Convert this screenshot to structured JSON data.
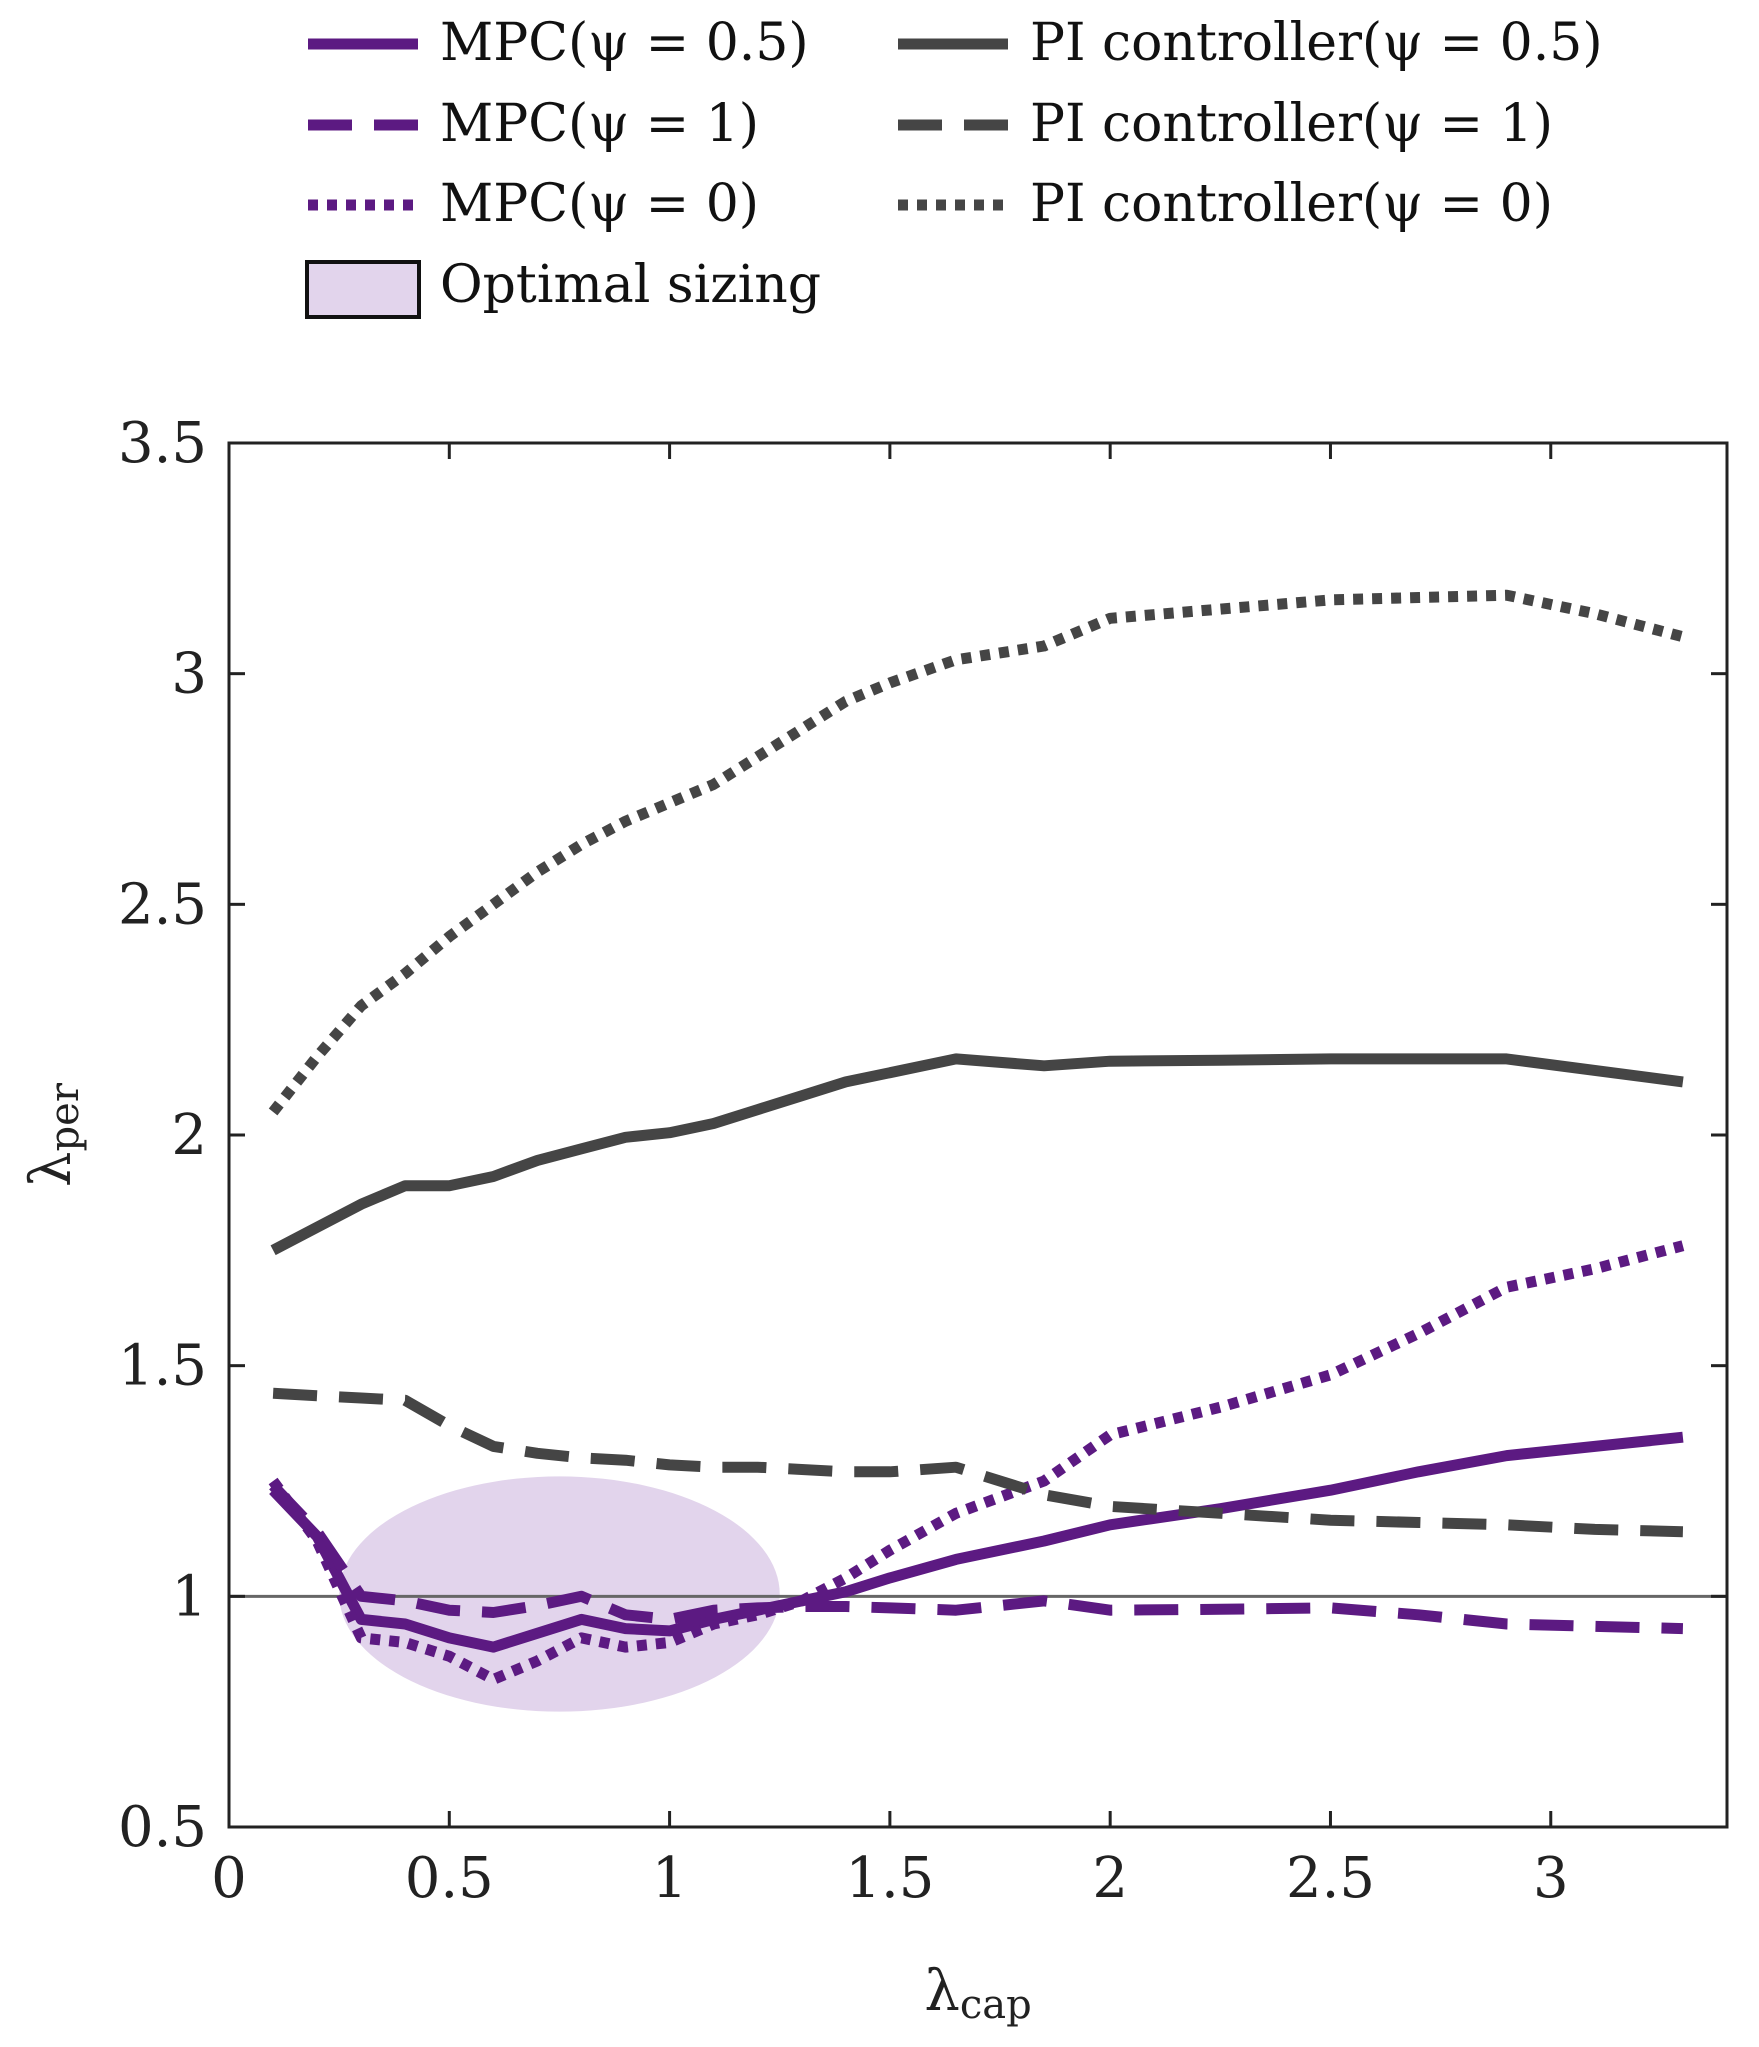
{
  "chart_data": {
    "type": "line",
    "title": "",
    "xlabel": "λcap",
    "xlabel_symbol": "λ",
    "xlabel_sub": "cap",
    "ylabel": "λper",
    "ylabel_symbol": "λ",
    "ylabel_sub": "per",
    "xlim": [
      0,
      3.4
    ],
    "ylim": [
      0.5,
      3.5
    ],
    "xticks": [
      0,
      0.5,
      1,
      1.5,
      2,
      2.5,
      3
    ],
    "xtick_labels": [
      "0",
      "0.5",
      "1",
      "1.5",
      "2",
      "2.5",
      "3"
    ],
    "yticks": [
      0.5,
      1,
      1.5,
      2,
      2.5,
      3,
      3.5
    ],
    "ytick_labels": [
      "0.5",
      "1",
      "1.5",
      "2",
      "2.5",
      "3",
      "3.5"
    ],
    "grid": false,
    "legend_position": "top",
    "reference_line": {
      "y": 1,
      "color": "#666666"
    },
    "optimal_region": {
      "label": "Optimal sizing",
      "center_x": 0.75,
      "center_y": 1.005,
      "radius_x": 0.5,
      "radius_y": 0.255,
      "color": "#e2d4ec"
    },
    "series": [
      {
        "name": "MPC(ψ = 0.5)",
        "color": "#5c1a82",
        "style": "solid",
        "x": [
          0.1,
          0.2,
          0.3,
          0.4,
          0.5,
          0.6,
          0.7,
          0.8,
          0.9,
          1.0,
          1.1,
          1.2,
          1.3,
          1.4,
          1.5,
          1.65,
          1.85,
          2.0,
          2.25,
          2.5,
          2.7,
          2.9,
          3.1,
          3.3
        ],
        "y": [
          1.23,
          1.13,
          0.95,
          0.94,
          0.91,
          0.89,
          0.92,
          0.95,
          0.93,
          0.925,
          0.95,
          0.97,
          0.99,
          1.01,
          1.04,
          1.08,
          1.12,
          1.155,
          1.19,
          1.23,
          1.27,
          1.305,
          1.325,
          1.345
        ]
      },
      {
        "name": "MPC(ψ = 1)",
        "color": "#5c1a82",
        "style": "dashed",
        "x": [
          0.1,
          0.2,
          0.3,
          0.4,
          0.5,
          0.6,
          0.7,
          0.8,
          0.9,
          1.0,
          1.1,
          1.2,
          1.3,
          1.4,
          1.5,
          1.65,
          1.85,
          2.0,
          2.25,
          2.5,
          2.7,
          2.9,
          3.1,
          3.3
        ],
        "y": [
          1.24,
          1.14,
          1.0,
          0.99,
          0.97,
          0.965,
          0.98,
          1.0,
          0.96,
          0.95,
          0.97,
          0.975,
          0.978,
          0.978,
          0.975,
          0.97,
          0.99,
          0.97,
          0.972,
          0.975,
          0.96,
          0.94,
          0.935,
          0.93
        ]
      },
      {
        "name": "MPC(ψ = 0)",
        "color": "#5c1a82",
        "style": "dotted",
        "x": [
          0.1,
          0.2,
          0.3,
          0.4,
          0.5,
          0.6,
          0.7,
          0.8,
          0.9,
          1.0,
          1.1,
          1.2,
          1.3,
          1.4,
          1.5,
          1.65,
          1.85,
          2.0,
          2.25,
          2.5,
          2.7,
          2.9,
          3.1,
          3.3
        ],
        "y": [
          1.25,
          1.12,
          0.91,
          0.9,
          0.87,
          0.82,
          0.86,
          0.91,
          0.89,
          0.9,
          0.94,
          0.96,
          0.99,
          1.04,
          1.1,
          1.18,
          1.25,
          1.35,
          1.41,
          1.48,
          1.57,
          1.67,
          1.71,
          1.76
        ]
      },
      {
        "name": "PI controller(ψ = 0.5)",
        "color": "#454545",
        "style": "solid",
        "x": [
          0.1,
          0.2,
          0.3,
          0.4,
          0.5,
          0.6,
          0.7,
          0.8,
          0.9,
          1.0,
          1.1,
          1.2,
          1.3,
          1.4,
          1.5,
          1.65,
          1.85,
          2.0,
          2.25,
          2.5,
          2.7,
          2.9,
          3.1,
          3.3
        ],
        "y": [
          1.75,
          1.8,
          1.85,
          1.89,
          1.89,
          1.91,
          1.945,
          1.97,
          1.995,
          2.005,
          2.025,
          2.055,
          2.085,
          2.115,
          2.135,
          2.165,
          2.15,
          2.16,
          2.162,
          2.165,
          2.165,
          2.165,
          2.14,
          2.115
        ]
      },
      {
        "name": "PI controller(ψ = 1)",
        "color": "#454545",
        "style": "dashed",
        "x": [
          0.1,
          0.2,
          0.3,
          0.4,
          0.5,
          0.6,
          0.7,
          0.8,
          0.9,
          1.0,
          1.1,
          1.2,
          1.3,
          1.4,
          1.5,
          1.65,
          1.85,
          2.0,
          2.25,
          2.5,
          2.7,
          2.9,
          3.1,
          3.3
        ],
        "y": [
          1.44,
          1.435,
          1.43,
          1.425,
          1.37,
          1.325,
          1.31,
          1.3,
          1.295,
          1.285,
          1.28,
          1.28,
          1.275,
          1.27,
          1.27,
          1.28,
          1.22,
          1.195,
          1.18,
          1.165,
          1.16,
          1.155,
          1.145,
          1.14
        ]
      },
      {
        "name": "PI controller(ψ = 0)",
        "color": "#454545",
        "style": "dotted",
        "x": [
          0.1,
          0.2,
          0.3,
          0.4,
          0.5,
          0.6,
          0.7,
          0.8,
          0.9,
          1.0,
          1.1,
          1.2,
          1.3,
          1.4,
          1.5,
          1.65,
          1.85,
          2.0,
          2.25,
          2.5,
          2.7,
          2.9,
          3.1,
          3.3
        ],
        "y": [
          2.05,
          2.17,
          2.28,
          2.35,
          2.43,
          2.5,
          2.57,
          2.63,
          2.68,
          2.72,
          2.76,
          2.82,
          2.88,
          2.94,
          2.98,
          3.03,
          3.06,
          3.12,
          3.14,
          3.16,
          3.165,
          3.17,
          3.13,
          3.08
        ]
      }
    ]
  }
}
